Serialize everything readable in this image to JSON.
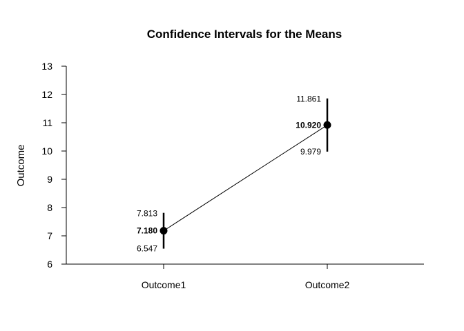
{
  "chart_data": {
    "type": "line",
    "title": "Confidence Intervals for the Means",
    "xlabel": "",
    "ylabel": "Outcome",
    "categories": [
      "Outcome1",
      "Outcome2"
    ],
    "means": [
      7.18,
      10.92
    ],
    "lower": [
      6.547,
      9.979
    ],
    "upper": [
      7.813,
      11.861
    ],
    "mean_labels": [
      "7.180",
      "10.920"
    ],
    "lower_labels": [
      "6.547",
      "9.979"
    ],
    "upper_labels": [
      "7.813",
      "11.861"
    ],
    "ylim": [
      6,
      13
    ],
    "yticks": [
      6,
      7,
      8,
      9,
      10,
      11,
      12,
      13
    ],
    "grid": false,
    "legend": "none"
  }
}
